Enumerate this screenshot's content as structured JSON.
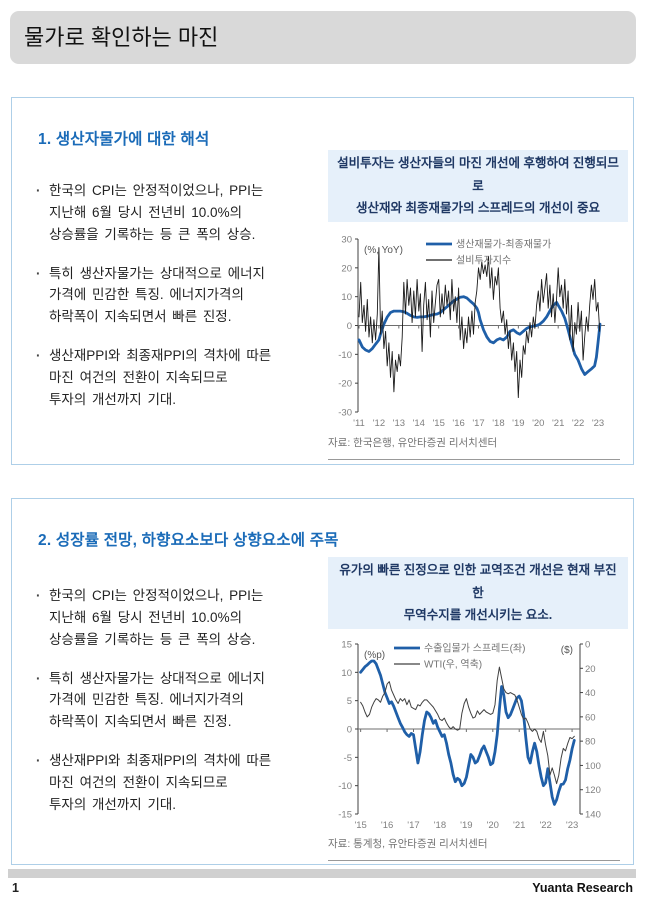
{
  "header": {
    "title": "물가로 확인하는 마진"
  },
  "footer": {
    "page": "1",
    "brand": "Yuanta Research"
  },
  "colors": {
    "titlebar_bg": "#D9D9D9",
    "panel_border": "#AECFE8",
    "section_title_blue": "#1A6BB8",
    "note_bg": "#E6F0FA",
    "note_text": "#1F3864",
    "series_blue": "#1F5FA8",
    "series_black": "#1A1A1A",
    "series_gray": "#404040",
    "axis_text_gray": "#808080"
  },
  "sections": [
    {
      "title": "1. 생산자물가에 대한 해석",
      "bullets": [
        "한국의 CPI는 안정적이었으나, PPI는\n지난해 6월 당시 전년비 10.0%의\n상승률을 기록하는 등 큰 폭의 상승.",
        "특히 생산자물가는 상대적으로 에너지\n가격에 민감한 특징. 에너지가격의\n하락폭이 지속되면서 빠른 진정.",
        "생산재PPI와 최종재PPI의 격차에 따른\n마진 여건의 전환이 지속되므로\n투자의 개선까지 기대."
      ],
      "note": "설비투자는 생산자들의 마진 개선에 후행하여 진행되므로\n생산재와 최종재물가의 스프레드의 개선이 중요",
      "source": "자료: 한국은행, 유안타증권 리서치센터"
    },
    {
      "title": "2. 성장률 전망, 하향요소보다 상향요소에 주목",
      "bullets": [
        "한국의 CPI는 안정적이었으나, PPI는\n지난해 6월 당시 전년비 10.0%의\n상승률을 기록하는 등 큰 폭의 상승.",
        "특히 생산자물가는 상대적으로 에너지\n가격에 민감한 특징. 에너지가격의\n하락폭이 지속되면서 빠른 진정.",
        "생산재PPI와 최종재PPI의 격차에 따른\n마진 여건의 전환이 지속되므로\n투자의 개선까지 기대."
      ],
      "note": "유가의 빠른 진정으로 인한 교역조건 개선은 현재 부진한\n무역수지를 개선시키는 요소.",
      "source": "자료: 통계청, 유안타증권 리서치센터"
    }
  ],
  "chart_data": [
    {
      "type": "line",
      "title": "설비투자는 생산자들의 마진 개선에 후행하여 진행되므로 생산재와 최종재물가의 스프레드의 개선이 중요",
      "x_range": [
        10.95,
        23.35
      ],
      "x_ticks": {
        "values": [
          11,
          12,
          13,
          14,
          15,
          16,
          17,
          18,
          19,
          20,
          21,
          22,
          23
        ],
        "labels": [
          "'11",
          "'12",
          "'13",
          "'14",
          "'15",
          "'16",
          "'17",
          "'18",
          "'19",
          "'20",
          "'21",
          "'22",
          "'23"
        ]
      },
      "y_axis": {
        "unit": "(%, YoY)",
        "min": -30,
        "max": 30,
        "ticks": [
          30,
          20,
          10,
          0,
          -10,
          -20,
          -30
        ]
      },
      "legend_position": "top-right",
      "grid": false,
      "series": [
        {
          "name": "생산재물가-최종재물가",
          "color": "#1F5FA8",
          "stroke_width": 2.8,
          "axis": "left",
          "x": [
            11.0,
            11.17,
            11.33,
            11.5,
            11.67,
            11.83,
            12.0,
            12.08,
            12.25,
            12.42,
            12.58,
            12.75,
            12.92,
            13.08,
            13.25,
            13.42,
            13.58,
            13.75,
            13.92,
            14.08,
            14.25,
            14.42,
            14.58,
            14.75,
            14.92,
            15.08,
            15.25,
            15.42,
            15.58,
            15.75,
            15.92,
            16.08,
            16.25,
            16.42,
            16.58,
            16.75,
            16.92,
            17.0,
            17.08,
            17.25,
            17.42,
            17.58,
            17.75,
            17.92,
            18.08,
            18.25,
            18.42,
            18.58,
            18.75,
            18.92,
            19.08,
            19.25,
            19.42,
            19.58,
            19.75,
            19.92,
            20.08,
            20.25,
            20.42,
            20.58,
            20.75,
            20.92,
            21.0,
            21.17,
            21.33,
            21.5,
            21.67,
            21.83,
            22.0,
            22.17,
            22.33,
            22.5,
            22.67,
            22.83,
            22.92,
            23.0,
            23.1
          ],
          "y": [
            -5,
            -7.5,
            -8.5,
            -9,
            -8,
            -6.5,
            -5,
            -3,
            0.5,
            3,
            4.5,
            5,
            5,
            5,
            4.8,
            4.2,
            3.5,
            3,
            2.8,
            3,
            3,
            3.2,
            3.5,
            3.8,
            4,
            4.5,
            5.5,
            6.5,
            7.5,
            8.5,
            9.2,
            9.8,
            10,
            9.5,
            8.5,
            7.5,
            6,
            4.5,
            2,
            -1.5,
            -4,
            -5.5,
            -6,
            -5,
            -4.5,
            -5,
            -4,
            -2,
            -1.5,
            -2.5,
            -3,
            -2,
            -1,
            -0.5,
            -0.2,
            0,
            0.5,
            1.5,
            3,
            5,
            7,
            8,
            7,
            5,
            2.5,
            -1.5,
            -6,
            -10,
            -12,
            -15,
            -17,
            -16,
            -15,
            -14,
            -11,
            -6,
            0.5
          ]
        },
        {
          "name": "설비투자지수",
          "color": "#1A1A1A",
          "stroke_width": 0.9,
          "axis": "left",
          "x_start": 11.0,
          "x_step": 0.08333,
          "y": [
            3,
            15,
            1,
            7,
            -2,
            9,
            -4,
            3,
            -6,
            2,
            -5,
            4,
            27,
            -3,
            5,
            -8,
            -2,
            -14,
            -6,
            -18,
            -9,
            -23,
            -12,
            -16,
            -10,
            -14,
            -4,
            15,
            4,
            16,
            7,
            13,
            1,
            12,
            3,
            16,
            5,
            11,
            -9,
            7,
            15,
            2,
            9,
            -4,
            12,
            1,
            8,
            14,
            16,
            3,
            11,
            4,
            14,
            7,
            12,
            2,
            16,
            5,
            10,
            1,
            13,
            -5,
            3,
            -8,
            -1,
            -6,
            3,
            -4,
            5,
            -3,
            8,
            12,
            20,
            16,
            22,
            18,
            21,
            17,
            24,
            13,
            20,
            9,
            17,
            14,
            20,
            6,
            1,
            5,
            -3,
            2,
            -8,
            -2,
            -12,
            -6,
            -16,
            -9,
            -25,
            -12,
            -18,
            -7,
            -10,
            -2,
            -6,
            1,
            -4,
            3,
            -1,
            7,
            12,
            5,
            16,
            8,
            13,
            18,
            6,
            14,
            3,
            11,
            1,
            9,
            20,
            10,
            14,
            6,
            16,
            4,
            12,
            -5,
            7,
            -9,
            1,
            -3,
            8,
            -2,
            5,
            -12,
            -4,
            3,
            -2,
            7,
            14,
            9,
            16,
            5,
            8,
            -2
          ]
        }
      ],
      "source": "자료: 한국은행, 유안타증권 리서치센터"
    },
    {
      "type": "line",
      "title": "유가의 빠른 진정으로 인한 교역조건 개선은 현재 부진한 무역수지를 개선시키는 요소.",
      "x_range": [
        14.9,
        23.3
      ],
      "x_ticks": {
        "values": [
          15,
          16,
          17,
          18,
          19,
          20,
          21,
          22,
          23
        ],
        "labels": [
          "'15",
          "'16",
          "'17",
          "'18",
          "'19",
          "'20",
          "'21",
          "'22",
          "'23"
        ]
      },
      "y_axis": {
        "unit": "(%p)",
        "min": -15,
        "max": 15,
        "ticks": [
          15,
          10,
          5,
          0,
          -5,
          -10,
          -15
        ]
      },
      "y2_axis": {
        "unit": "($)",
        "min": 0,
        "max": 140,
        "ticks": [
          0,
          20,
          40,
          60,
          80,
          100,
          120,
          140
        ],
        "reversed": true
      },
      "legend_position": "top-left",
      "grid": false,
      "series": [
        {
          "name": "수출입물가 스프레드(좌)",
          "color": "#1F5FA8",
          "stroke_width": 2.8,
          "axis": "left",
          "x_start": 15.0,
          "x_step": 0.08333,
          "y": [
            10,
            10.5,
            11,
            11.3,
            11.7,
            12,
            12,
            11.5,
            10.5,
            9.5,
            8,
            6.5,
            5.5,
            4.5,
            4.8,
            4,
            3,
            2,
            1,
            0.3,
            -0.5,
            -1,
            -1.3,
            -0.8,
            -1,
            -3.5,
            -6,
            -4,
            -1,
            1.5,
            3,
            2.7,
            2,
            1,
            1.5,
            0.3,
            -0.5,
            -1.3,
            -1,
            -2.5,
            -4.5,
            -6,
            -8,
            -9.3,
            -8.7,
            -9,
            -10,
            -9.6,
            -8.5,
            -6.5,
            -4.5,
            -5,
            -6,
            -5.7,
            -4.7,
            -3.6,
            -3,
            -4,
            -5,
            -6.3,
            -6,
            -4,
            -1,
            3.5,
            7.5,
            6,
            3,
            2,
            2.5,
            3.5,
            4.5,
            5.5,
            5.8,
            5,
            2.5,
            -1.5,
            -5,
            -6,
            -4,
            -2.5,
            -4,
            -6.5,
            -8.5,
            -10,
            -9.5,
            -7,
            -9.5,
            -12,
            -13.3,
            -12.5,
            -11,
            -9.8,
            -9.7,
            -9,
            -7,
            -5.5,
            -3.5,
            -2
          ]
        },
        {
          "name": "WTI(우, 역축)",
          "color": "#404040",
          "stroke_width": 1,
          "axis": "right",
          "x_start": 15.0,
          "x_step": 0.08333,
          "y": [
            48,
            51,
            56,
            60,
            58,
            52,
            48,
            45,
            46,
            48,
            43,
            40,
            33,
            31,
            38,
            42,
            46,
            49,
            45,
            47,
            45,
            50,
            46,
            52,
            53,
            54,
            50,
            51,
            48,
            46,
            46,
            48,
            50,
            52,
            55,
            58,
            62,
            63,
            61,
            65,
            68,
            70,
            68,
            70,
            71,
            70,
            57,
            49,
            45,
            52,
            57,
            61,
            60,
            55,
            58,
            56,
            54,
            56,
            57,
            58,
            57,
            50,
            30,
            19,
            28,
            37,
            40,
            41,
            40,
            41,
            42,
            46,
            52,
            58,
            62,
            61,
            65,
            70,
            72,
            70,
            72,
            78,
            81,
            72,
            83,
            92,
            108,
            102,
            108,
            115,
            108,
            94,
            86,
            88,
            82,
            77,
            78,
            76
          ]
        }
      ],
      "source": "자료: 통계청, 유안타증권 리서치센터"
    }
  ]
}
